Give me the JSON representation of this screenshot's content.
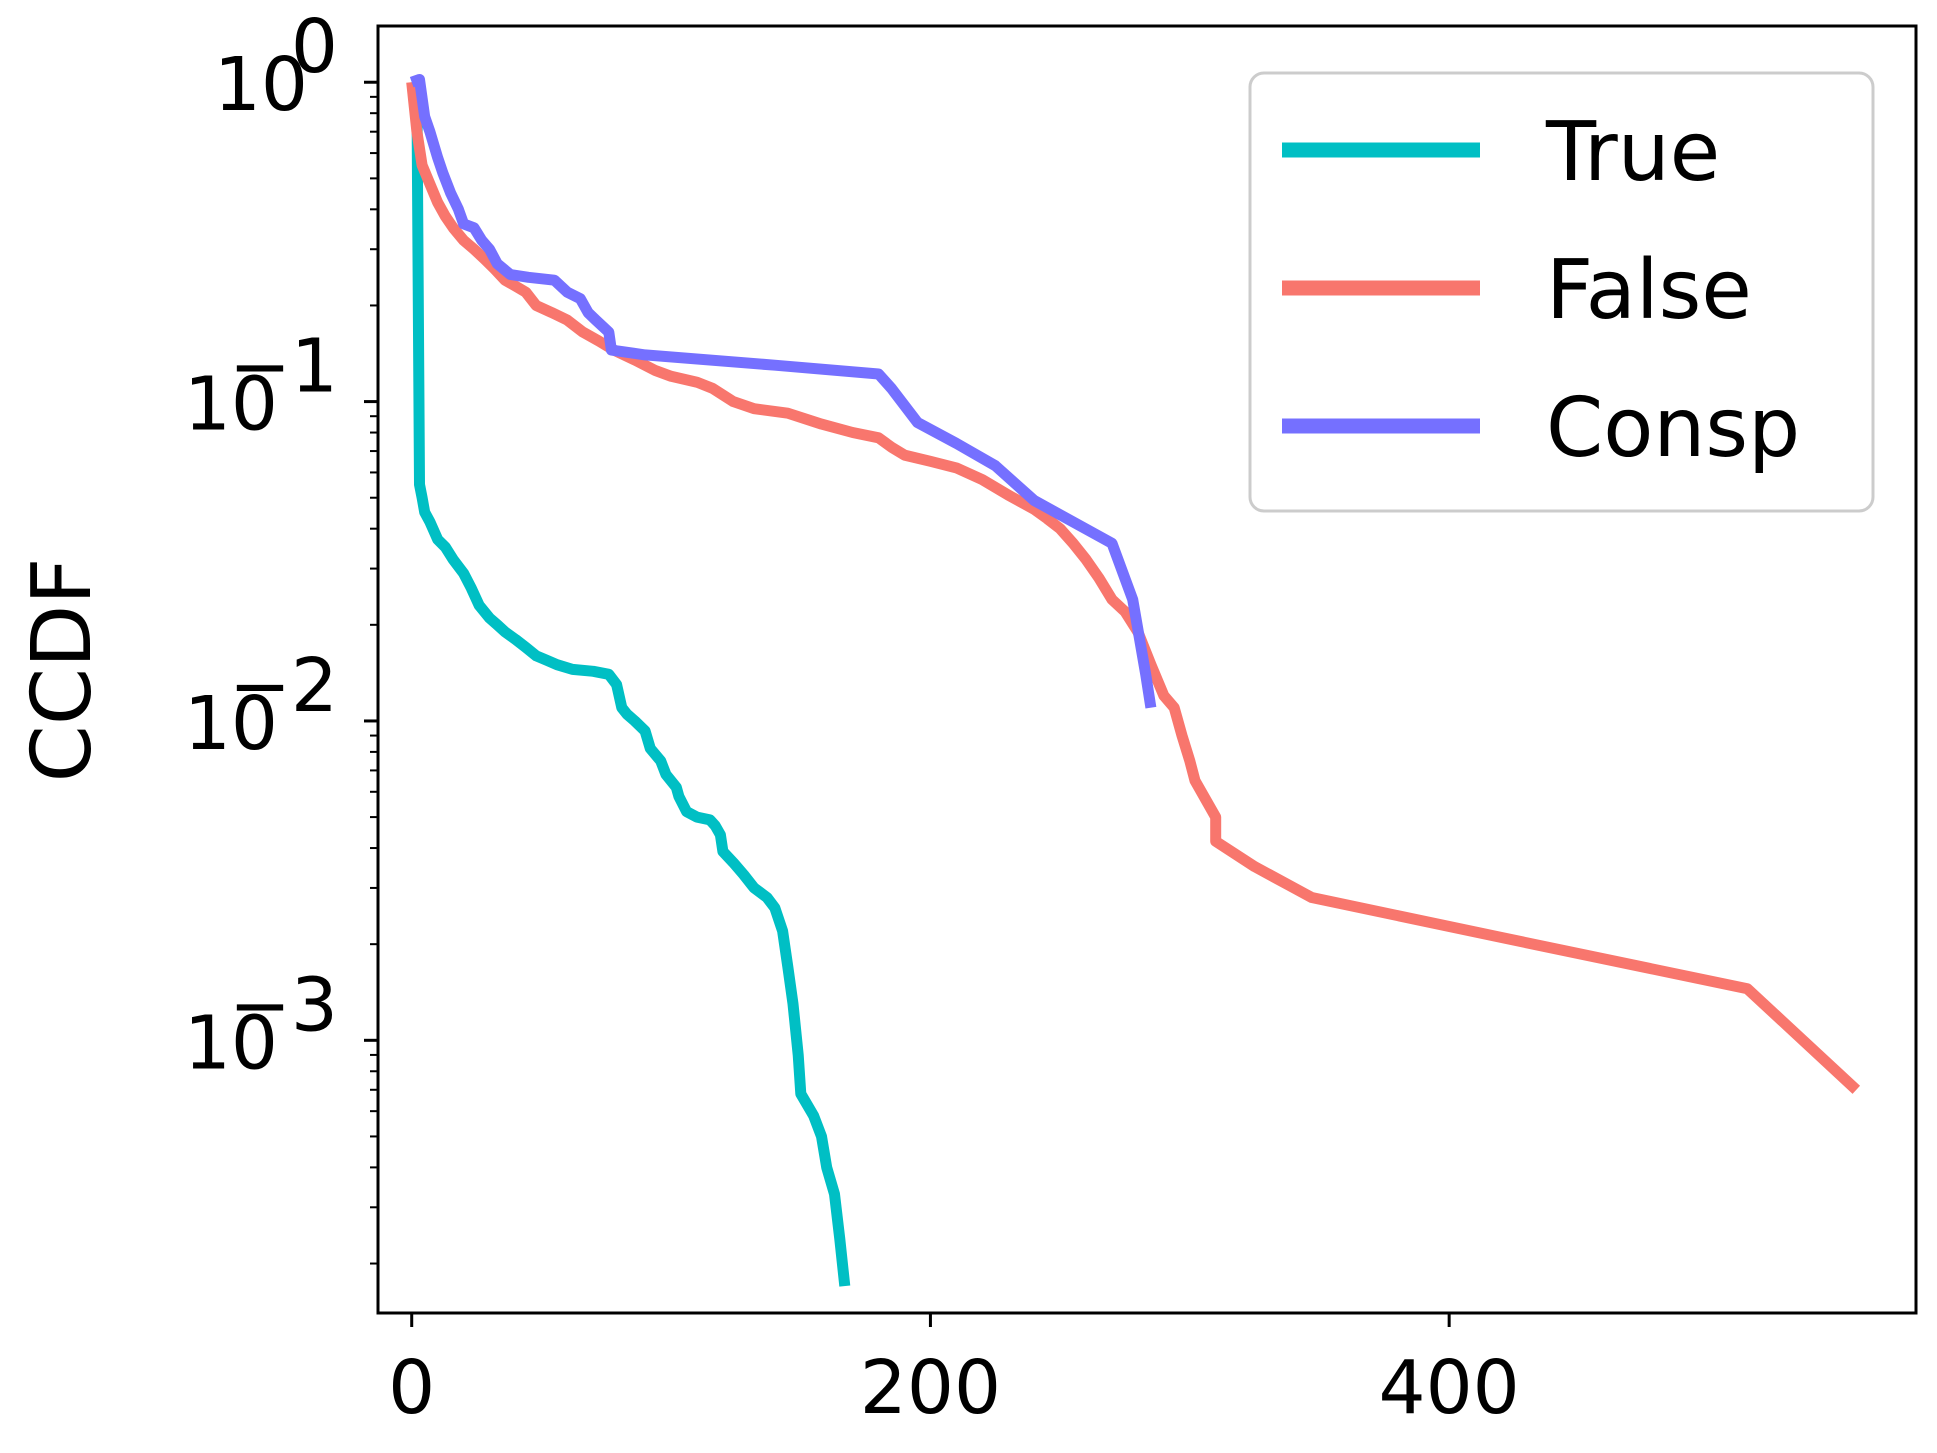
{
  "chart_data": {
    "type": "line",
    "title": "",
    "xlabel": "",
    "ylabel": "CCDF",
    "yscale": "log",
    "xlim": [
      -13,
      580
    ],
    "ylim": [
      0.00014,
      1.5
    ],
    "x_ticks": [
      {
        "value": 0,
        "label": "0"
      },
      {
        "value": 200,
        "label": "200"
      },
      {
        "value": 400,
        "label": "400"
      }
    ],
    "y_ticks": [
      {
        "value": 1,
        "base": "10",
        "exp": "0"
      },
      {
        "value": 0.1,
        "base": "10",
        "exp": "−1"
      },
      {
        "value": 0.01,
        "base": "10",
        "exp": "−2"
      },
      {
        "value": 0.001,
        "base": "10",
        "exp": "−3"
      }
    ],
    "grid": false,
    "legend_position": "top-right",
    "series": [
      {
        "name": "True",
        "color": "#00bfc4",
        "points": [
          [
            0,
            1.0
          ],
          [
            2,
            0.95
          ],
          [
            3,
            0.055
          ],
          [
            4,
            0.05
          ],
          [
            5,
            0.045
          ],
          [
            7,
            0.042
          ],
          [
            10,
            0.037
          ],
          [
            13,
            0.035
          ],
          [
            16,
            0.032
          ],
          [
            20,
            0.029
          ],
          [
            23,
            0.026
          ],
          [
            26,
            0.023
          ],
          [
            30,
            0.021
          ],
          [
            33,
            0.02
          ],
          [
            36,
            0.019
          ],
          [
            40,
            0.018
          ],
          [
            44,
            0.017
          ],
          [
            48,
            0.016
          ],
          [
            52,
            0.0155
          ],
          [
            56,
            0.015
          ],
          [
            62,
            0.0145
          ],
          [
            70,
            0.0143
          ],
          [
            76,
            0.014
          ],
          [
            79,
            0.013
          ],
          [
            81,
            0.011
          ],
          [
            83,
            0.0105
          ],
          [
            86,
            0.01
          ],
          [
            90,
            0.0093
          ],
          [
            92,
            0.0082
          ],
          [
            96,
            0.0075
          ],
          [
            98,
            0.0068
          ],
          [
            102,
            0.0062
          ],
          [
            103,
            0.0058
          ],
          [
            106,
            0.0052
          ],
          [
            110,
            0.005
          ],
          [
            115,
            0.0049
          ],
          [
            117,
            0.0047
          ],
          [
            119,
            0.0044
          ],
          [
            120,
            0.0039
          ],
          [
            124,
            0.0036
          ],
          [
            128,
            0.0033
          ],
          [
            132,
            0.003
          ],
          [
            137,
            0.0028
          ],
          [
            140,
            0.0026
          ],
          [
            143,
            0.0022
          ],
          [
            145,
            0.0017
          ],
          [
            147,
            0.0013
          ],
          [
            149,
            0.0009
          ],
          [
            150,
            0.00068
          ],
          [
            155,
            0.00058
          ],
          [
            158,
            0.0005
          ],
          [
            160,
            0.0004
          ],
          [
            163,
            0.00033
          ],
          [
            165,
            0.00024
          ],
          [
            167,
            0.00017
          ]
        ]
      },
      {
        "name": "False",
        "color": "#f8766d",
        "points": [
          [
            0,
            1.0
          ],
          [
            2,
            0.7
          ],
          [
            4,
            0.55
          ],
          [
            7,
            0.48
          ],
          [
            10,
            0.42
          ],
          [
            13,
            0.38
          ],
          [
            16,
            0.35
          ],
          [
            20,
            0.32
          ],
          [
            24,
            0.3
          ],
          [
            28,
            0.28
          ],
          [
            32,
            0.26
          ],
          [
            36,
            0.24
          ],
          [
            40,
            0.23
          ],
          [
            44,
            0.22
          ],
          [
            48,
            0.2
          ],
          [
            54,
            0.19
          ],
          [
            60,
            0.18
          ],
          [
            66,
            0.165
          ],
          [
            72,
            0.155
          ],
          [
            78,
            0.145
          ],
          [
            86,
            0.135
          ],
          [
            94,
            0.125
          ],
          [
            100,
            0.12
          ],
          [
            110,
            0.115
          ],
          [
            116,
            0.11
          ],
          [
            124,
            0.1
          ],
          [
            132,
            0.095
          ],
          [
            145,
            0.092
          ],
          [
            158,
            0.085
          ],
          [
            170,
            0.08
          ],
          [
            180,
            0.077
          ],
          [
            185,
            0.072
          ],
          [
            190,
            0.068
          ],
          [
            200,
            0.065
          ],
          [
            210,
            0.062
          ],
          [
            220,
            0.057
          ],
          [
            230,
            0.051
          ],
          [
            240,
            0.046
          ],
          [
            245,
            0.043
          ],
          [
            250,
            0.04
          ],
          [
            255,
            0.036
          ],
          [
            260,
            0.032
          ],
          [
            265,
            0.028
          ],
          [
            270,
            0.024
          ],
          [
            275,
            0.022
          ],
          [
            280,
            0.019
          ],
          [
            285,
            0.015
          ],
          [
            290,
            0.012
          ],
          [
            294,
            0.011
          ],
          [
            297,
            0.009
          ],
          [
            300,
            0.0075
          ],
          [
            302,
            0.0065
          ],
          [
            310,
            0.005
          ],
          [
            310,
            0.0042
          ],
          [
            325,
            0.0035
          ],
          [
            347,
            0.0028
          ],
          [
            420,
            0.0021
          ],
          [
            515,
            0.00145
          ],
          [
            557,
            0.0007
          ]
        ]
      },
      {
        "name": "Consp",
        "color": "#7570ff",
        "points": [
          [
            0,
            1.0
          ],
          [
            3,
            1.02
          ],
          [
            5,
            0.78
          ],
          [
            7,
            0.7
          ],
          [
            10,
            0.58
          ],
          [
            12,
            0.52
          ],
          [
            15,
            0.45
          ],
          [
            18,
            0.4
          ],
          [
            20,
            0.36
          ],
          [
            24,
            0.35
          ],
          [
            27,
            0.32
          ],
          [
            30,
            0.3
          ],
          [
            33,
            0.27
          ],
          [
            38,
            0.25
          ],
          [
            45,
            0.245
          ],
          [
            55,
            0.24
          ],
          [
            60,
            0.22
          ],
          [
            65,
            0.21
          ],
          [
            68,
            0.19
          ],
          [
            71,
            0.18
          ],
          [
            76,
            0.165
          ],
          [
            77,
            0.145
          ],
          [
            90,
            0.14
          ],
          [
            140,
            0.13
          ],
          [
            180,
            0.122
          ],
          [
            185,
            0.11
          ],
          [
            195,
            0.086
          ],
          [
            210,
            0.074
          ],
          [
            225,
            0.063
          ],
          [
            240,
            0.049
          ],
          [
            270,
            0.036
          ],
          [
            278,
            0.024
          ],
          [
            283,
            0.014
          ],
          [
            285,
            0.011
          ]
        ]
      }
    ]
  }
}
